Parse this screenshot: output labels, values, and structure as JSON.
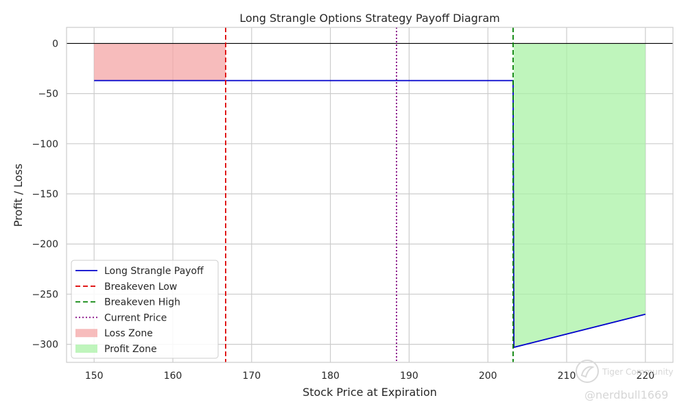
{
  "chart_data": {
    "type": "line",
    "title": "Long Strangle Options Strategy Payoff Diagram",
    "xlabel": "Stock Price at Expiration",
    "ylabel": "Profit / Loss",
    "xlim": [
      146.5,
      223.5
    ],
    "ylim": [
      -318,
      16
    ],
    "xticks": [
      150,
      160,
      170,
      180,
      190,
      200,
      210,
      220
    ],
    "yticks": [
      0,
      -50,
      -100,
      -150,
      -200,
      -250,
      -300
    ],
    "grid": true,
    "series": [
      {
        "name": "Long Strangle Payoff",
        "color": "#0000cc",
        "x": [
          150,
          203.2,
          203.3,
          220
        ],
        "y": [
          -37,
          -37,
          -303,
          -270
        ]
      }
    ],
    "vlines": [
      {
        "name": "Breakeven Low",
        "x": 166.7,
        "color": "#dd0000",
        "style": "dashed"
      },
      {
        "name": "Breakeven High",
        "x": 203.2,
        "color": "#008000",
        "style": "dashed"
      },
      {
        "name": "Current Price",
        "x": 188.4,
        "color": "#800080",
        "style": "dotted"
      }
    ],
    "zones": [
      {
        "name": "Loss Zone",
        "color": "#f4a6a6",
        "x": [
          150,
          166.7
        ],
        "y_top": [
          0,
          0
        ],
        "y_bottom": [
          -37,
          -37
        ]
      },
      {
        "name": "Profit Zone",
        "color": "#a9f2a6",
        "x": [
          203.3,
          220
        ],
        "y_top": [
          0,
          0
        ],
        "y_bottom": [
          -303,
          -270
        ]
      }
    ],
    "hline": {
      "y": 0,
      "color": "#000000"
    },
    "legend": {
      "position": "lower-left",
      "entries": [
        {
          "label": "Long Strangle Payoff",
          "kind": "line",
          "color": "#0000cc",
          "style": "solid"
        },
        {
          "label": "Breakeven Low",
          "kind": "line",
          "color": "#dd0000",
          "style": "dashed"
        },
        {
          "label": "Breakeven High",
          "kind": "line",
          "color": "#008000",
          "style": "dashed"
        },
        {
          "label": "Current Price",
          "kind": "line",
          "color": "#800080",
          "style": "dotted"
        },
        {
          "label": "Loss Zone",
          "kind": "patch",
          "color": "#f4a6a6"
        },
        {
          "label": "Profit Zone",
          "kind": "patch",
          "color": "#a9f2a6"
        }
      ]
    }
  },
  "watermark": {
    "brand": "Tiger Community",
    "user": "@nerdbull1669",
    "icon": "tiger-community-logo-icon"
  }
}
